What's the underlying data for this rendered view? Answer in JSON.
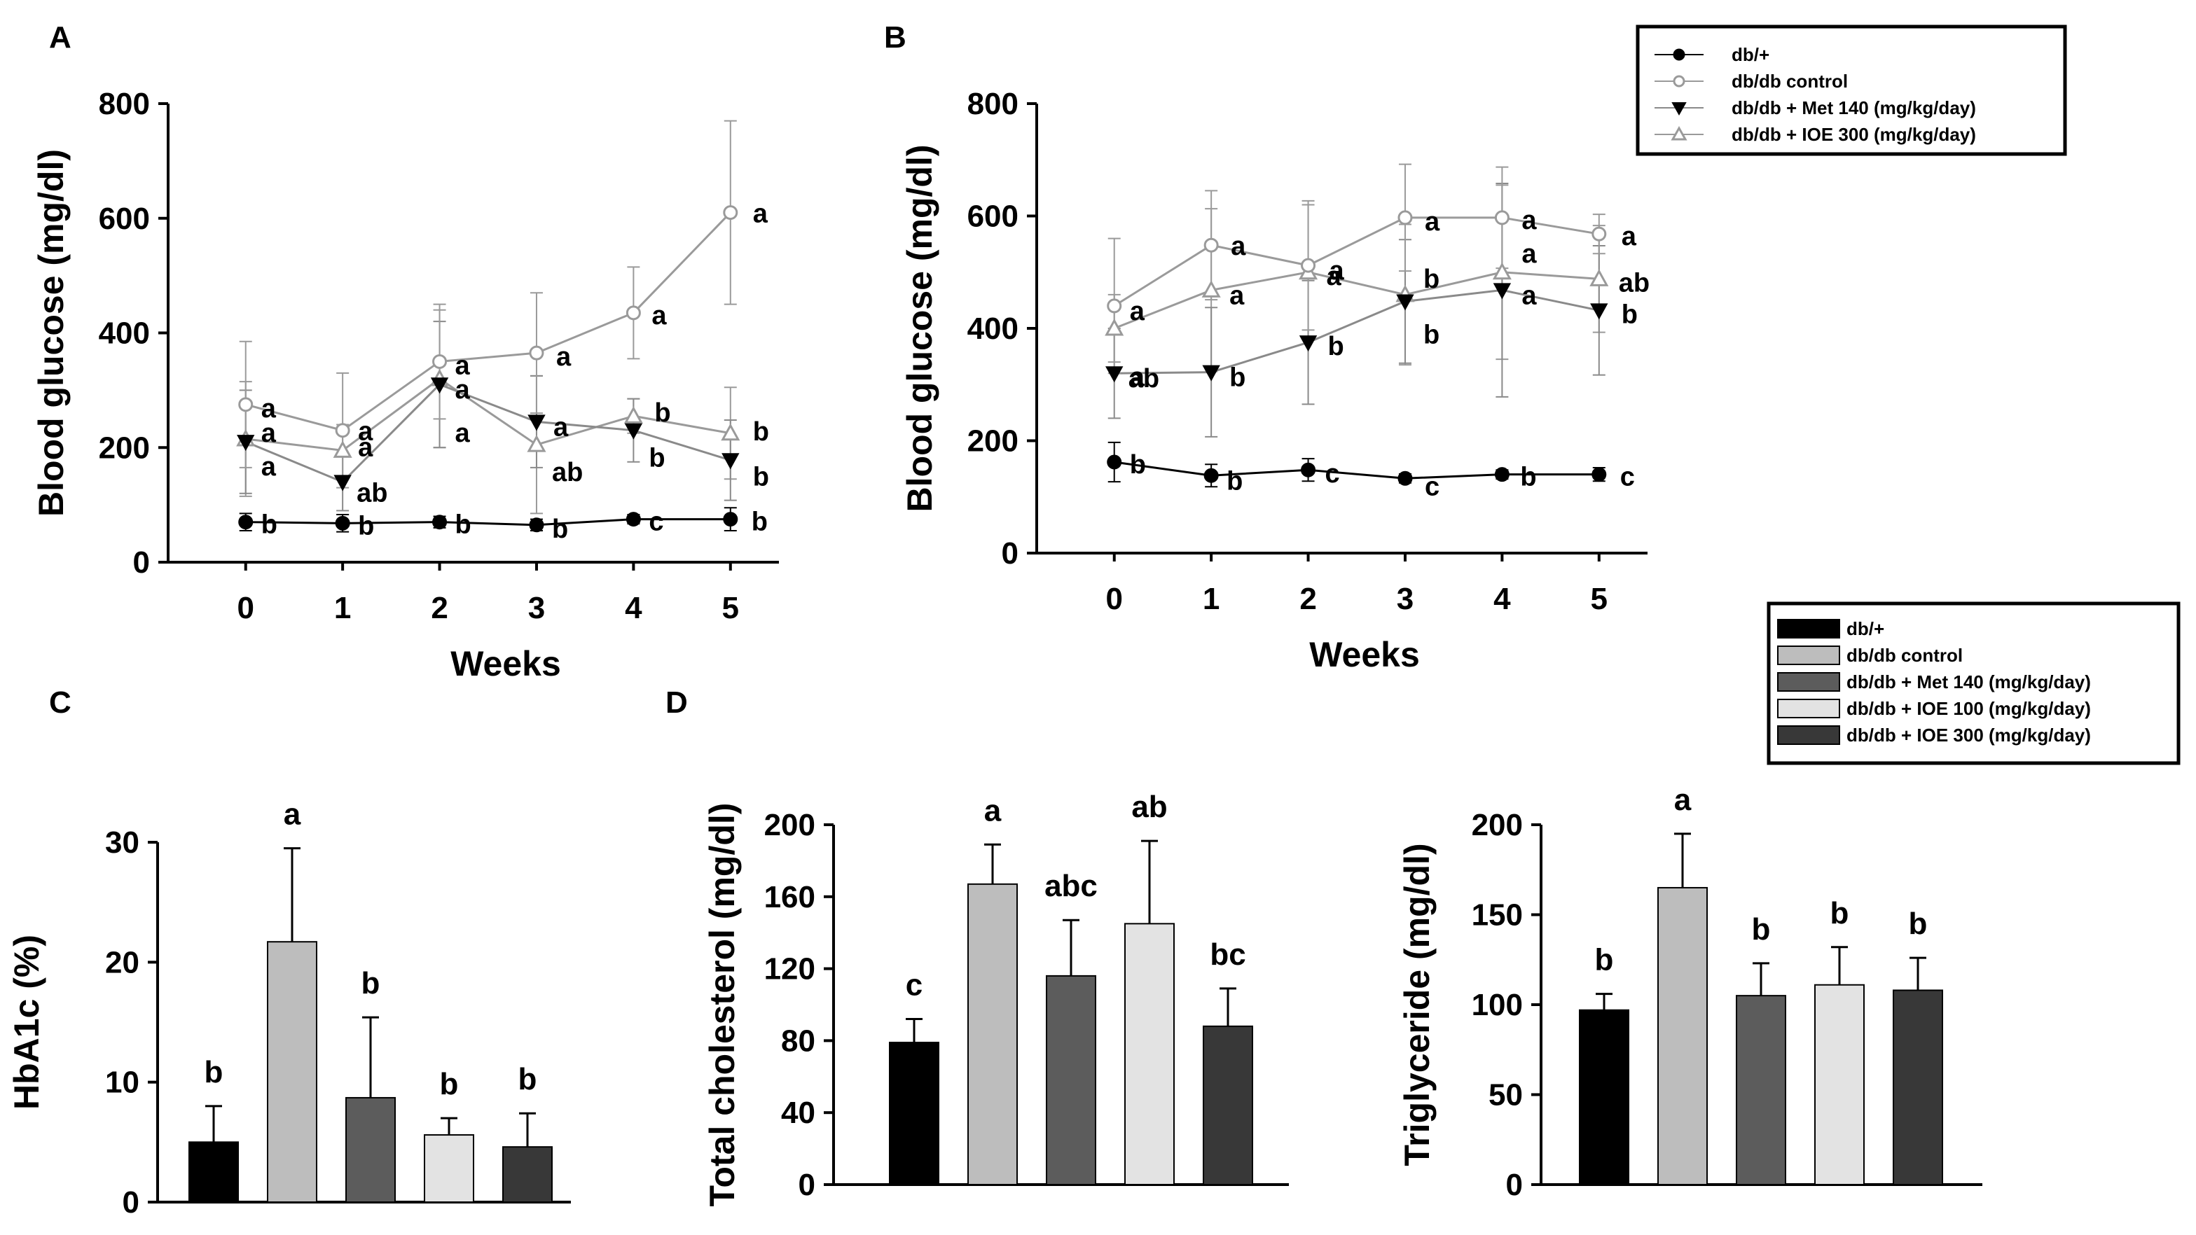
{
  "panel_labels": [
    "A",
    "B",
    "C",
    "D"
  ],
  "legend_lines": {
    "entries": [
      {
        "label": "db/+",
        "marker": "filled-circle",
        "color": "#000000"
      },
      {
        "label": "db/db  control",
        "marker": "open-circle",
        "color": "#9a9a9a"
      },
      {
        "label": "db/db + Met 140 (mg/kg/day)",
        "marker": "filled-triangle-down",
        "color": "#808080"
      },
      {
        "label": "db/db + IOE 300 (mg/kg/day)",
        "marker": "open-triangle-up",
        "color": "#9a9a9a"
      }
    ]
  },
  "legend_bars": {
    "entries": [
      {
        "label": "db/+",
        "color": "#000000"
      },
      {
        "label": "db/db  control",
        "color": "#bdbdbd"
      },
      {
        "label": "db/db + Met 140 (mg/kg/day)",
        "color": "#5c5c5c"
      },
      {
        "label": "db/db + IOE 100 (mg/kg/day)",
        "color": "#e3e3e3"
      },
      {
        "label": "db/db + IOE 300 (mg/kg/day)",
        "color": "#383838"
      }
    ]
  },
  "chart_data": [
    {
      "panel": "A",
      "type": "line",
      "xlabel": "Weeks",
      "ylabel": "Blood glucose (mg/dl)",
      "x": [
        0,
        1,
        2,
        3,
        4,
        5
      ],
      "xlim": [
        -0.8,
        5.5
      ],
      "ylim": [
        0,
        800
      ],
      "yticks": [
        0,
        200,
        400,
        600,
        800
      ],
      "series": [
        {
          "name": "db/+",
          "values": [
            70,
            68,
            70,
            65,
            75,
            75
          ],
          "errors": [
            15,
            15,
            10,
            10,
            8,
            20
          ],
          "labels": [
            "b",
            "b",
            "b",
            "b",
            "c",
            "b"
          ]
        },
        {
          "name": "db/db  control",
          "values": [
            275,
            230,
            350,
            365,
            435,
            610
          ],
          "errors": [
            110,
            100,
            100,
            105,
            80,
            160
          ],
          "labels": [
            "a",
            "a",
            "a",
            "a",
            "a",
            "a"
          ]
        },
        {
          "name": "db/db + Met 140 (mg/kg/day)",
          "values": [
            210,
            140,
            310,
            245,
            230,
            178
          ],
          "errors": [
            90,
            50,
            110,
            80,
            55,
            70
          ],
          "labels": [
            "a",
            "ab",
            "a",
            "a",
            "b",
            "b"
          ]
        },
        {
          "name": "db/db + IOE 300 (mg/kg/day)",
          "values": [
            215,
            195,
            320,
            205,
            255,
            225
          ],
          "errors": [
            100,
            45,
            120,
            120,
            30,
            80
          ],
          "labels": [
            "a",
            "a",
            "a",
            "ab",
            "b",
            "b"
          ]
        }
      ]
    },
    {
      "panel": "B",
      "type": "line",
      "xlabel": "Weeks",
      "ylabel": "Blood glucose (mg/dl)",
      "x": [
        0,
        1,
        2,
        3,
        4,
        5
      ],
      "xlim": [
        -0.8,
        5.5
      ],
      "ylim": [
        0,
        800
      ],
      "yticks": [
        0,
        200,
        400,
        600,
        800
      ],
      "series": [
        {
          "name": "db/+",
          "values": [
            162,
            138,
            148,
            133,
            140,
            140
          ],
          "errors": [
            35,
            20,
            20,
            8,
            8,
            12
          ],
          "labels": [
            "b",
            "b",
            "c",
            "c",
            "b",
            "c"
          ]
        },
        {
          "name": "db/db  control",
          "values": [
            440,
            548,
            512,
            597,
            597,
            568
          ],
          "errors": [
            120,
            97,
            115,
            95,
            90,
            35
          ],
          "labels": [
            "a",
            "a",
            "a",
            "a",
            "a",
            "a"
          ]
        },
        {
          "name": "db/db + Met 140 (mg/kg/day)",
          "values": [
            320,
            322,
            375,
            448,
            468,
            432
          ],
          "errors": [
            80,
            115,
            110,
            110,
            190,
            115
          ],
          "labels": [
            "ab",
            "b",
            "b",
            "b",
            "a",
            "b"
          ]
        },
        {
          "name": "db/db + IOE 300 (mg/kg/day)",
          "values": [
            400,
            468,
            500,
            460,
            500,
            488
          ],
          "errors": [
            60,
            145,
            120,
            125,
            155,
            95
          ],
          "labels": [
            "a",
            "a",
            "a",
            "b",
            "a",
            "ab"
          ]
        }
      ]
    },
    {
      "panel": "C",
      "type": "bar",
      "ylabel": "HbA1c (%)",
      "categories": [
        "db/+",
        "db/db  control",
        "db/db + Met 140 (mg/kg/day)",
        "db/db + IOE 100 (mg/kg/day)",
        "db/db + IOE 300 (mg/kg/day)"
      ],
      "values": [
        5.0,
        21.7,
        8.7,
        5.6,
        4.6
      ],
      "errors": [
        3.0,
        7.8,
        6.7,
        1.4,
        2.8
      ],
      "labels": [
        "b",
        "a",
        "b",
        "b",
        "b"
      ],
      "ylim": [
        0,
        30
      ],
      "yticks": [
        0,
        10,
        20,
        30
      ]
    },
    {
      "panel": "D",
      "type": "bar",
      "ylabel": "Total cholesterol (mg/dl)",
      "categories": [
        "db/+",
        "db/db  control",
        "db/db + Met 140 (mg/kg/day)",
        "db/db + IOE 100 (mg/kg/day)",
        "db/db + IOE 300 (mg/kg/day)"
      ],
      "values": [
        79,
        167,
        116,
        145,
        88
      ],
      "errors": [
        13,
        22,
        31,
        46,
        21
      ],
      "labels": [
        "c",
        "a",
        "abc",
        "ab",
        "bc"
      ],
      "ylim": [
        0,
        200
      ],
      "yticks": [
        0,
        40,
        80,
        120,
        160,
        200
      ]
    },
    {
      "panel": "D",
      "type": "bar",
      "ylabel": "Triglyceride (mg/dl)",
      "categories": [
        "db/+",
        "db/db  control",
        "db/db + Met 140 (mg/kg/day)",
        "db/db + IOE 100 (mg/kg/day)",
        "db/db + IOE 300 (mg/kg/day)"
      ],
      "values": [
        97,
        165,
        105,
        111,
        108
      ],
      "errors": [
        9,
        30,
        18,
        21,
        18
      ],
      "labels": [
        "b",
        "a",
        "b",
        "b",
        "b"
      ],
      "ylim": [
        0,
        200
      ],
      "yticks": [
        0,
        50,
        100,
        150,
        200
      ]
    }
  ]
}
